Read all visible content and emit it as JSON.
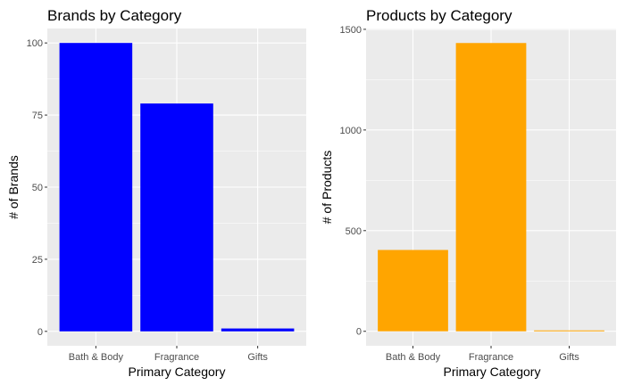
{
  "chart_data": [
    {
      "type": "bar",
      "title": "Brands by Category",
      "xlabel": "Primary Category",
      "ylabel": "# of Brands",
      "categories": [
        "Bath & Body",
        "Fragrance",
        "Gifts"
      ],
      "values": [
        100,
        79,
        1
      ],
      "ylim": [
        -5,
        105
      ],
      "yticks": [
        0,
        25,
        50,
        75,
        100
      ],
      "ytick_labels": [
        "0",
        "25",
        "50",
        "75",
        "100"
      ],
      "bar_color": "#0000ff",
      "grid": true
    },
    {
      "type": "bar",
      "title": "Products by Category",
      "xlabel": "Primary Category",
      "ylabel": "# of Products",
      "categories": [
        "Bath & Body",
        "Fragrance",
        "Gifts"
      ],
      "values": [
        404,
        1432,
        2
      ],
      "ylim": [
        -72,
        1504
      ],
      "yticks": [
        0,
        500,
        1000,
        1500
      ],
      "ytick_labels": [
        "0",
        "500",
        "1000",
        "1500"
      ],
      "bar_color": "#ffa500",
      "grid": true
    }
  ]
}
